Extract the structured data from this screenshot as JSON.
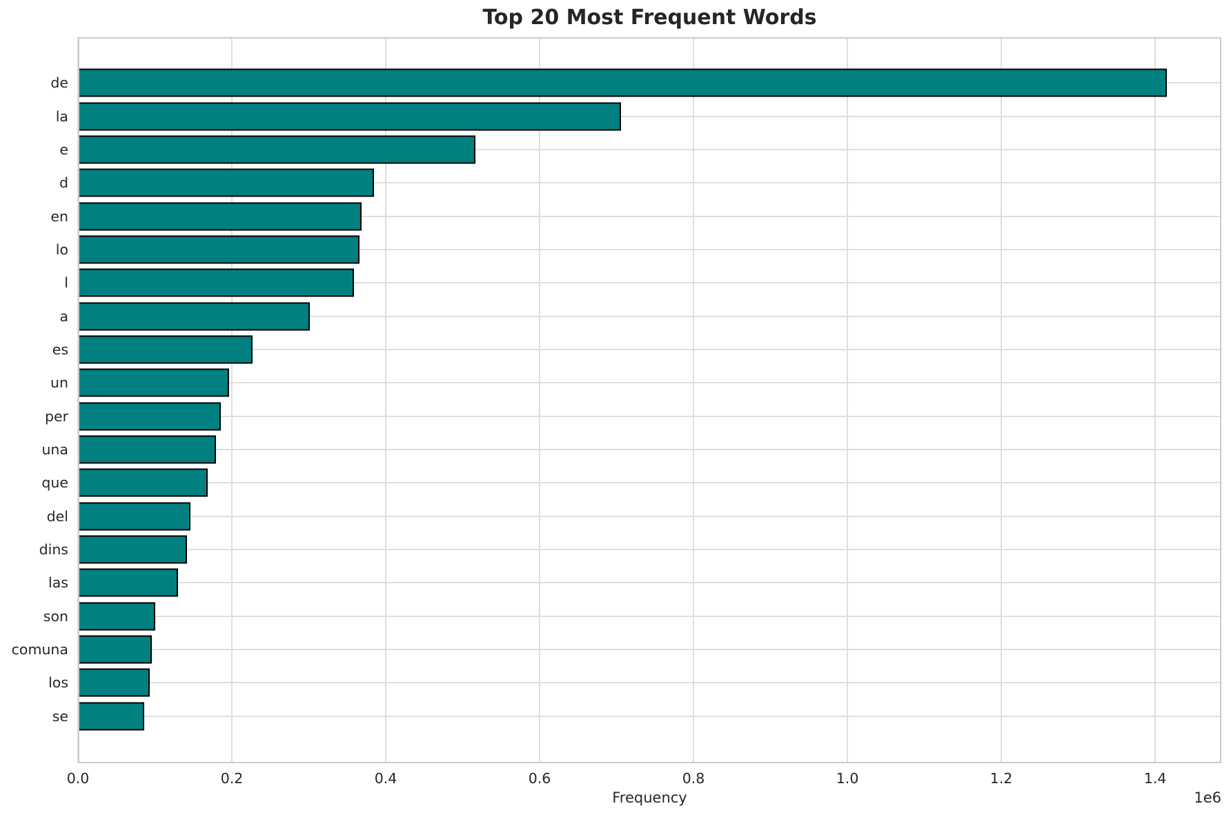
{
  "chart_data": {
    "type": "bar",
    "orientation": "horizontal",
    "title": "Top 20 Most Frequent Words",
    "xlabel": "Frequency",
    "ylabel": "",
    "categories": [
      "de",
      "la",
      "e",
      "d",
      "en",
      "lo",
      "l",
      "a",
      "es",
      "un",
      "per",
      "una",
      "que",
      "del",
      "dins",
      "las",
      "son",
      "comuna",
      "los",
      "se"
    ],
    "values": [
      1415000,
      706000,
      517000,
      385000,
      369000,
      366000,
      359000,
      301000,
      227000,
      196000,
      186000,
      179000,
      169000,
      146000,
      142000,
      130000,
      100000,
      96000,
      93000,
      86000
    ],
    "xlim": [
      0,
      1486000
    ],
    "x_ticks": [
      0,
      200000,
      400000,
      600000,
      800000,
      1000000,
      1200000,
      1400000
    ],
    "x_tick_labels": [
      "0.0",
      "0.2",
      "0.4",
      "0.6",
      "0.8",
      "1.0",
      "1.2",
      "1.4"
    ],
    "offset_text": "1e6",
    "grid": true,
    "legend": "none",
    "bar_color": "#008080",
    "bar_edge_color": "#000000",
    "grid_color": "#dedede",
    "spine_color": "#cbcbcb",
    "text_color": "#262626"
  }
}
